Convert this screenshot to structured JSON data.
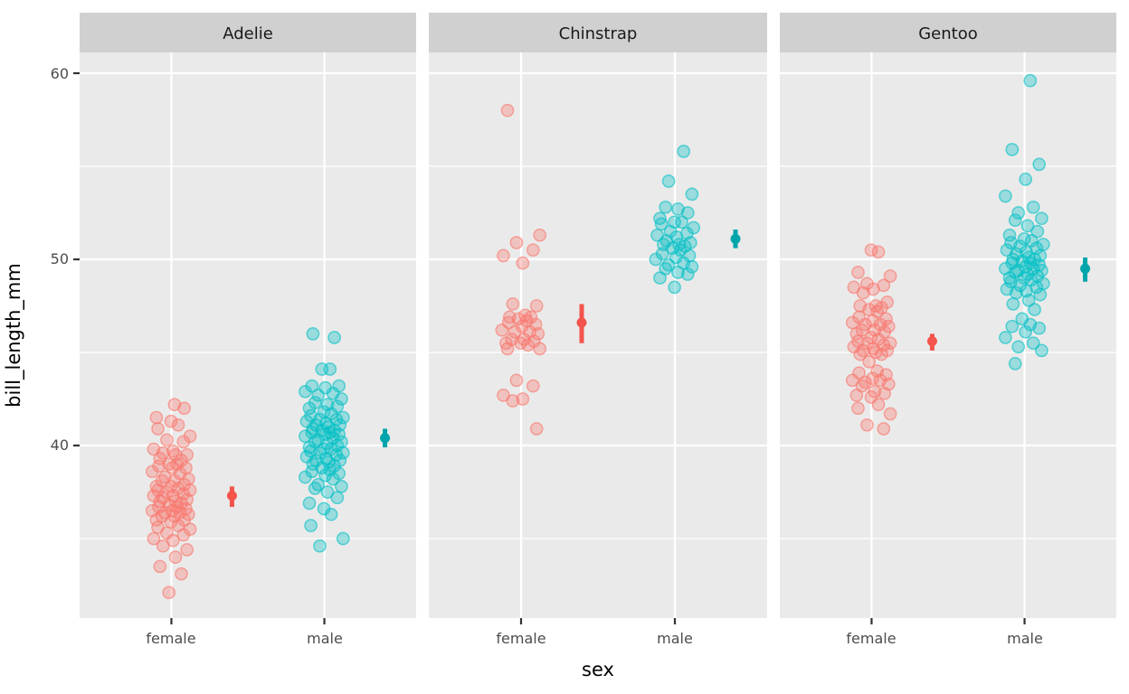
{
  "chart_data": {
    "type": "scatter",
    "subtype": "jitter-strip-with-mean-pointrange",
    "xlabel": "sex",
    "ylabel": "bill_length_mm",
    "x_categories": [
      "female",
      "male"
    ],
    "y_ticks": [
      40,
      50,
      60
    ],
    "y_minor_ticks": [
      35,
      45,
      55
    ],
    "ylim": [
      30.6,
      61.2
    ],
    "legend": "none",
    "grid": "on",
    "palette": {
      "female": "#F8766D",
      "male": "#00BFC4"
    },
    "summary_palette": {
      "female": "#F4544C",
      "male": "#00A5AB"
    },
    "facets": [
      {
        "label": "Adelie",
        "series": [
          {
            "sex": "female",
            "summary": {
              "mean": 37.3,
              "ci_low": 36.7,
              "ci_high": 37.8
            },
            "values": [
              32.1,
              33.1,
              33.5,
              34.0,
              34.4,
              34.6,
              34.9,
              35.0,
              35.2,
              35.3,
              35.5,
              35.6,
              35.7,
              35.9,
              36.0,
              36.0,
              36.2,
              36.2,
              36.3,
              36.4,
              36.4,
              36.5,
              36.5,
              36.6,
              36.7,
              36.7,
              36.8,
              36.9,
              37.0,
              37.0,
              37.1,
              37.2,
              37.3,
              37.3,
              37.4,
              37.5,
              37.6,
              37.6,
              37.7,
              37.8,
              37.8,
              37.9,
              38.1,
              38.1,
              38.2,
              38.3,
              38.5,
              38.6,
              38.8,
              38.8,
              38.9,
              39.0,
              39.0,
              39.2,
              39.3,
              39.5,
              39.5,
              39.6,
              39.7,
              39.8,
              40.2,
              40.3,
              40.5,
              40.9,
              41.1,
              41.3,
              41.5,
              42.0,
              42.2
            ]
          },
          {
            "sex": "male",
            "summary": {
              "mean": 40.4,
              "ci_low": 39.9,
              "ci_high": 40.9
            },
            "values": [
              34.6,
              35.0,
              35.7,
              36.3,
              36.6,
              36.9,
              37.2,
              37.5,
              37.7,
              37.8,
              37.9,
              38.2,
              38.3,
              38.4,
              38.5,
              38.6,
              38.7,
              38.8,
              38.9,
              39.0,
              39.1,
              39.2,
              39.2,
              39.3,
              39.4,
              39.5,
              39.6,
              39.6,
              39.7,
              39.8,
              39.8,
              39.9,
              40.0,
              40.1,
              40.2,
              40.2,
              40.3,
              40.4,
              40.5,
              40.6,
              40.6,
              40.7,
              40.7,
              40.8,
              40.8,
              40.9,
              41.0,
              41.1,
              41.1,
              41.2,
              41.3,
              41.4,
              41.4,
              41.5,
              41.6,
              41.7,
              41.8,
              42.0,
              42.1,
              42.2,
              42.3,
              42.5,
              42.7,
              42.8,
              42.9,
              43.1,
              43.2,
              43.2,
              44.1,
              44.1,
              45.8,
              46.0
            ]
          }
        ]
      },
      {
        "label": "Chinstrap",
        "series": [
          {
            "sex": "female",
            "summary": {
              "mean": 46.6,
              "ci_low": 45.5,
              "ci_high": 47.6
            },
            "values": [
              40.9,
              42.4,
              42.5,
              42.7,
              43.2,
              43.5,
              45.2,
              45.2,
              45.4,
              45.5,
              45.5,
              45.6,
              45.7,
              45.7,
              46.0,
              46.1,
              46.1,
              46.2,
              46.4,
              46.5,
              46.6,
              46.7,
              46.8,
              46.9,
              46.9,
              47.0,
              47.5,
              47.6,
              49.8,
              50.2,
              50.5,
              50.9,
              51.3,
              58.0
            ]
          },
          {
            "sex": "male",
            "summary": {
              "mean": 51.1,
              "ci_low": 50.6,
              "ci_high": 51.6
            },
            "values": [
              48.5,
              49.0,
              49.2,
              49.3,
              49.5,
              49.6,
              49.7,
              49.8,
              50.0,
              50.1,
              50.2,
              50.3,
              50.5,
              50.6,
              50.7,
              50.8,
              50.8,
              50.9,
              51.0,
              51.2,
              51.3,
              51.4,
              51.5,
              51.7,
              51.9,
              52.0,
              52.0,
              52.2,
              52.5,
              52.7,
              52.8,
              53.5,
              54.2,
              55.8
            ]
          }
        ]
      },
      {
        "label": "Gentoo",
        "series": [
          {
            "sex": "female",
            "summary": {
              "mean": 45.6,
              "ci_low": 45.1,
              "ci_high": 46.0
            },
            "values": [
              40.9,
              41.1,
              41.7,
              42.0,
              42.2,
              42.6,
              42.7,
              42.8,
              42.9,
              43.2,
              43.3,
              43.4,
              43.5,
              43.5,
              43.6,
              43.8,
              43.9,
              44.0,
              44.5,
              44.9,
              44.9,
              45.0,
              45.1,
              45.1,
              45.2,
              45.3,
              45.4,
              45.5,
              45.5,
              45.6,
              45.7,
              45.8,
              46.0,
              46.1,
              46.2,
              46.2,
              46.4,
              46.5,
              46.5,
              46.6,
              46.7,
              46.8,
              46.9,
              47.2,
              47.3,
              47.4,
              47.5,
              47.5,
              47.7,
              48.2,
              48.4,
              48.5,
              48.6,
              48.7,
              49.1,
              49.3,
              50.4,
              50.5
            ]
          },
          {
            "sex": "male",
            "summary": {
              "mean": 49.5,
              "ci_low": 48.8,
              "ci_high": 50.1
            },
            "values": [
              44.4,
              45.1,
              45.3,
              45.5,
              45.8,
              46.1,
              46.3,
              46.4,
              46.5,
              46.8,
              47.3,
              47.6,
              47.8,
              48.1,
              48.2,
              48.3,
              48.4,
              48.5,
              48.6,
              48.7,
              48.8,
              48.9,
              49.0,
              49.0,
              49.1,
              49.2,
              49.3,
              49.4,
              49.4,
              49.5,
              49.5,
              49.6,
              49.7,
              49.8,
              49.8,
              49.9,
              50.0,
              50.0,
              50.1,
              50.2,
              50.3,
              50.4,
              50.5,
              50.6,
              50.7,
              50.8,
              50.9,
              51.0,
              51.1,
              51.3,
              51.5,
              51.8,
              52.1,
              52.2,
              52.5,
              52.8,
              53.4,
              54.3,
              55.1,
              55.9,
              59.6
            ]
          }
        ]
      }
    ],
    "jitter_pattern": [
      -0.12,
      0.48,
      -0.55,
      0.2,
      0.75,
      -0.4,
      0.08,
      -0.85,
      0.58,
      -0.22,
      0.9,
      -0.65,
      0.33,
      -0.02,
      -0.72,
      0.62,
      0.15,
      -0.45,
      0.82,
      -0.3,
      0.42,
      -0.92,
      0.05,
      0.7,
      -0.6,
      0.27
    ]
  },
  "theme": {
    "outer_bg": "#FFFFFF",
    "panel_bg": "#EAEAEA",
    "strip_bg": "#D0D0D0",
    "grid_color": "#FFFFFF",
    "tick_color": "#333333",
    "axis_text_color": "#4D4D4D",
    "axis_title_color": "#000000"
  }
}
